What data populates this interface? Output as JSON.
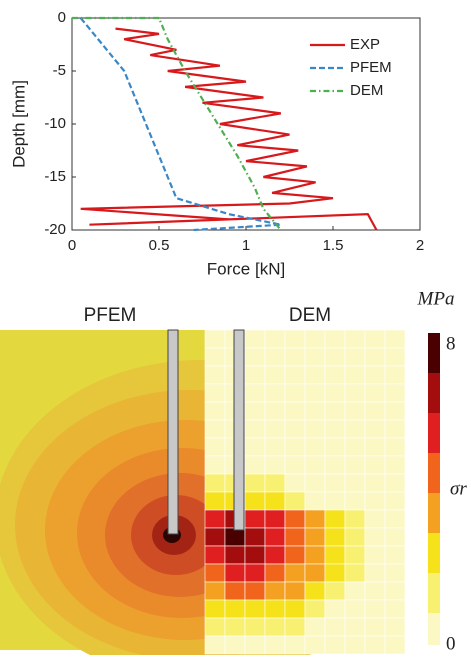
{
  "chart_data": [
    {
      "type": "line",
      "xlabel": "Force [kN]",
      "ylabel": "Depth [mm]",
      "xlim": [
        0,
        2
      ],
      "xticks": [
        0,
        0.5,
        1,
        1.5,
        2
      ],
      "ylim": [
        -20,
        0
      ],
      "yticks": [
        0,
        -5,
        -10,
        -15,
        -20
      ],
      "series": [
        {
          "name": "EXP",
          "color": "#d7191c",
          "dash": "solid",
          "x": [
            0.25,
            0.5,
            0.3,
            0.6,
            0.45,
            0.85,
            0.55,
            1.0,
            0.65,
            1.1,
            0.75,
            1.2,
            0.85,
            1.25,
            0.95,
            1.3,
            1.0,
            1.35,
            1.1,
            1.4,
            1.15,
            1.5,
            1.25,
            0.05,
            0.9,
            0.1,
            1.7,
            1.75
          ],
          "values": [
            -1,
            -1.5,
            -2,
            -3,
            -3.5,
            -4.5,
            -5,
            -6,
            -6.5,
            -7.5,
            -8,
            -9,
            -10,
            -11,
            -12,
            -12.5,
            -13.5,
            -14,
            -15,
            -15.5,
            -16.5,
            -17,
            -17.5,
            -18,
            -19,
            -19.5,
            -18.5,
            -20
          ]
        },
        {
          "name": "PFEM",
          "color": "#3a87c8",
          "dash": "dashed",
          "x": [
            0.05,
            0.1,
            0.2,
            0.3,
            0.35,
            0.4,
            0.45,
            0.5,
            0.55,
            0.6,
            0.9,
            1.2,
            0.7
          ],
          "values": [
            0,
            -1,
            -3,
            -5,
            -7,
            -9,
            -11,
            -13,
            -15,
            -17,
            -18.5,
            -19.5,
            -20
          ]
        },
        {
          "name": "DEM",
          "color": "#4caf50",
          "dash": "dashdot",
          "x": [
            0,
            0.5,
            0.55,
            0.65,
            0.8,
            0.95,
            1.05,
            1.1,
            1.2
          ],
          "values": [
            0,
            0,
            -2,
            -5,
            -9,
            -13,
            -16,
            -18,
            -20
          ]
        }
      ]
    },
    {
      "type": "contour",
      "panels": [
        "PFEM",
        "DEM"
      ],
      "colorbar_label": "MPa",
      "colorbar_symbol": "σr",
      "zlim": [
        0,
        8
      ],
      "zticks": [
        0,
        8
      ]
    }
  ]
}
